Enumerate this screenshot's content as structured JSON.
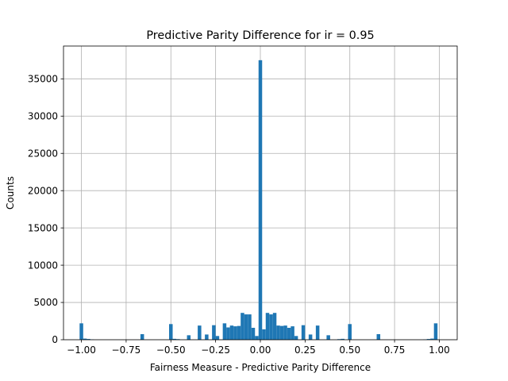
{
  "chart_data": {
    "type": "bar",
    "title": "Predictive Parity Difference for ir = 0.95",
    "xlabel": "Fairness Measure - Predictive Parity Difference",
    "ylabel": "Counts",
    "xlim": [
      -1.1,
      1.1
    ],
    "ylim": [
      0,
      39400
    ],
    "grid": true,
    "bar_color": "#1f77b4",
    "bin_width": 0.02,
    "xticks": [
      -1.0,
      -0.75,
      -0.5,
      -0.25,
      0.0,
      0.25,
      0.5,
      0.75,
      1.0
    ],
    "xtick_labels": [
      "−1.00",
      "−0.75",
      "−0.50",
      "−0.25",
      "0.00",
      "0.25",
      "0.50",
      "0.75",
      "1.00"
    ],
    "yticks": [
      0,
      5000,
      10000,
      15000,
      20000,
      25000,
      30000,
      35000
    ],
    "ytick_labels": [
      "0",
      "5000",
      "10000",
      "15000",
      "20000",
      "25000",
      "30000",
      "35000"
    ],
    "bins": [
      {
        "x": -1.0,
        "count": 2200
      },
      {
        "x": -0.98,
        "count": 150
      },
      {
        "x": -0.96,
        "count": 100
      },
      {
        "x": -0.94,
        "count": 50
      },
      {
        "x": -0.66,
        "count": 750
      },
      {
        "x": -0.5,
        "count": 2100
      },
      {
        "x": -0.48,
        "count": 120
      },
      {
        "x": -0.46,
        "count": 80
      },
      {
        "x": -0.4,
        "count": 600
      },
      {
        "x": -0.34,
        "count": 1900
      },
      {
        "x": -0.3,
        "count": 700
      },
      {
        "x": -0.26,
        "count": 1950
      },
      {
        "x": -0.24,
        "count": 500
      },
      {
        "x": -0.2,
        "count": 2200
      },
      {
        "x": -0.18,
        "count": 1650
      },
      {
        "x": -0.16,
        "count": 1900
      },
      {
        "x": -0.14,
        "count": 1800
      },
      {
        "x": -0.12,
        "count": 1850
      },
      {
        "x": -0.1,
        "count": 3600
      },
      {
        "x": -0.08,
        "count": 3400
      },
      {
        "x": -0.06,
        "count": 3400
      },
      {
        "x": -0.04,
        "count": 1600
      },
      {
        "x": -0.02,
        "count": 500
      },
      {
        "x": 0.0,
        "count": 37500
      },
      {
        "x": 0.02,
        "count": 1400
      },
      {
        "x": 0.04,
        "count": 3600
      },
      {
        "x": 0.06,
        "count": 3400
      },
      {
        "x": 0.08,
        "count": 3600
      },
      {
        "x": 0.1,
        "count": 1900
      },
      {
        "x": 0.12,
        "count": 1850
      },
      {
        "x": 0.14,
        "count": 1900
      },
      {
        "x": 0.16,
        "count": 1600
      },
      {
        "x": 0.18,
        "count": 1800
      },
      {
        "x": 0.2,
        "count": 500
      },
      {
        "x": 0.24,
        "count": 1950
      },
      {
        "x": 0.28,
        "count": 700
      },
      {
        "x": 0.32,
        "count": 1900
      },
      {
        "x": 0.38,
        "count": 600
      },
      {
        "x": 0.44,
        "count": 80
      },
      {
        "x": 0.46,
        "count": 120
      },
      {
        "x": 0.5,
        "count": 2100
      },
      {
        "x": 0.66,
        "count": 750
      },
      {
        "x": 0.92,
        "count": 50
      },
      {
        "x": 0.94,
        "count": 100
      },
      {
        "x": 0.96,
        "count": 150
      },
      {
        "x": 0.98,
        "count": 2200
      }
    ]
  }
}
